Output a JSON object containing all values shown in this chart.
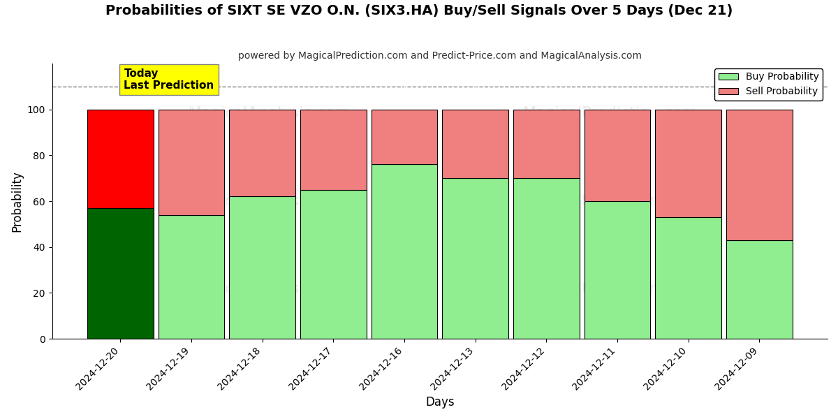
{
  "title": "Probabilities of SIXT SE VZO O.N. (SIX3.HA) Buy/Sell Signals Over 5 Days (Dec 21)",
  "subtitle": "powered by MagicalPrediction.com and Predict-Price.com and MagicalAnalysis.com",
  "xlabel": "Days",
  "ylabel": "Probability",
  "categories": [
    "2024-12-20",
    "2024-12-19",
    "2024-12-18",
    "2024-12-17",
    "2024-12-16",
    "2024-12-13",
    "2024-12-12",
    "2024-12-11",
    "2024-12-10",
    "2024-12-09"
  ],
  "buy_values": [
    57,
    54,
    62,
    65,
    76,
    70,
    70,
    60,
    53,
    43
  ],
  "sell_values": [
    43,
    46,
    38,
    35,
    24,
    30,
    30,
    40,
    47,
    57
  ],
  "buy_colors": [
    "#006400",
    "#90EE90",
    "#90EE90",
    "#90EE90",
    "#90EE90",
    "#90EE90",
    "#90EE90",
    "#90EE90",
    "#90EE90",
    "#90EE90"
  ],
  "sell_colors": [
    "#FF0000",
    "#F08080",
    "#F08080",
    "#F08080",
    "#F08080",
    "#F08080",
    "#F08080",
    "#F08080",
    "#F08080",
    "#F08080"
  ],
  "today_label": "Today\nLast Prediction",
  "today_bg": "#FFFF00",
  "legend_buy_color": "#90EE90",
  "legend_sell_color": "#F08080",
  "ylim": [
    0,
    120
  ],
  "yticks": [
    0,
    20,
    40,
    60,
    80,
    100
  ],
  "dashed_line_y": 110,
  "background_color": "#ffffff",
  "bar_edge_color": "#000000",
  "bar_edge_width": 0.8,
  "bar_width": 0.93
}
